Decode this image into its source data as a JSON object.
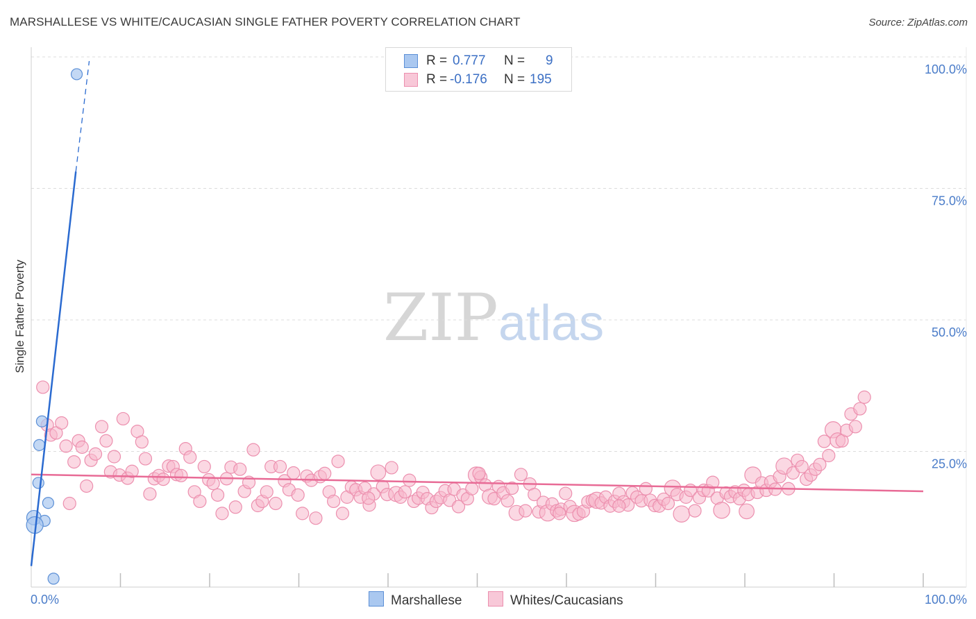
{
  "header": {
    "title": "MARSHALLESE VS WHITE/CAUCASIAN SINGLE FATHER POVERTY CORRELATION CHART",
    "source": "Source: ZipAtlas.com"
  },
  "colors": {
    "blue_fill": "#aac8f0",
    "blue_stroke": "#5b8fd6",
    "blue_line": "#2a6ad0",
    "pink_fill": "#f8b8cc",
    "pink_stroke": "#ec8fae",
    "pink_line": "#e86b96",
    "tick_text": "#4a7cc9",
    "grid": "#dcdcdc"
  },
  "watermark": {
    "zip": "ZIP",
    "atlas": "atlas"
  },
  "legend": {
    "rows": [
      {
        "r_label": "R =",
        "r_value": "0.777",
        "n_label": "N =",
        "n_value": "9"
      },
      {
        "r_label": "R =",
        "r_value": "-0.176",
        "n_label": "N =",
        "n_value": "195"
      }
    ]
  },
  "bottom_legend": {
    "marshallese": "Marshallese",
    "whites": "Whites/Caucasians"
  },
  "chart_data": {
    "type": "scatter",
    "title": "MARSHALLESE VS WHITE/CAUCASIAN SINGLE FATHER POVERTY CORRELATION CHART",
    "xlabel": "",
    "ylabel": "Single Father Poverty",
    "xlim": [
      0,
      100
    ],
    "ylim": [
      0,
      100
    ],
    "x_tick_labels": {
      "left": "0.0%",
      "right": "100.0%"
    },
    "y_ticks": [
      {
        "value": 25,
        "label": "25.0%"
      },
      {
        "value": 50,
        "label": "50.0%"
      },
      {
        "value": 75,
        "label": "75.0%"
      },
      {
        "value": 100,
        "label": "100.0%"
      }
    ],
    "series": [
      {
        "name": "Marshallese",
        "r": 0.777,
        "n": 9,
        "trend": {
          "x0": 0,
          "y0": 4,
          "x1": 5,
          "y1": 79,
          "dash_to_x": 6.5,
          "dash_to_y": 100
        },
        "points": [
          {
            "x": 5.1,
            "y": 97.5,
            "s": 1
          },
          {
            "x": 1.2,
            "y": 31.5,
            "s": 1
          },
          {
            "x": 0.9,
            "y": 27.0,
            "s": 1
          },
          {
            "x": 0.8,
            "y": 19.8,
            "s": 1
          },
          {
            "x": 1.9,
            "y": 16.0,
            "s": 1
          },
          {
            "x": 0.3,
            "y": 13.2,
            "s": 1.3
          },
          {
            "x": 1.5,
            "y": 12.6,
            "s": 1
          },
          {
            "x": 0.4,
            "y": 11.8,
            "s": 1.5
          },
          {
            "x": 2.5,
            "y": 1.6,
            "s": 1
          }
        ]
      },
      {
        "name": "Whites/Caucasians",
        "r": -0.176,
        "n": 195,
        "trend": {
          "x0": 0,
          "y0": 21.4,
          "x1": 100,
          "y1": 18.2
        },
        "points": [
          {
            "x": 1.3,
            "y": 38.0,
            "s": 1
          },
          {
            "x": 1.8,
            "y": 30.8,
            "s": 1
          },
          {
            "x": 2.2,
            "y": 28.9,
            "s": 1
          },
          {
            "x": 2.8,
            "y": 29.3,
            "s": 1
          },
          {
            "x": 3.4,
            "y": 31.2,
            "s": 1
          },
          {
            "x": 3.9,
            "y": 26.8,
            "s": 1
          },
          {
            "x": 4.3,
            "y": 15.9,
            "s": 1
          },
          {
            "x": 4.8,
            "y": 23.8,
            "s": 1
          },
          {
            "x": 5.3,
            "y": 27.8,
            "s": 1
          },
          {
            "x": 5.7,
            "y": 26.6,
            "s": 1
          },
          {
            "x": 6.2,
            "y": 19.2,
            "s": 1
          },
          {
            "x": 6.7,
            "y": 24.1,
            "s": 1
          },
          {
            "x": 7.2,
            "y": 25.3,
            "s": 1
          },
          {
            "x": 7.9,
            "y": 30.5,
            "s": 1
          },
          {
            "x": 8.4,
            "y": 27.8,
            "s": 1
          },
          {
            "x": 8.9,
            "y": 21.9,
            "s": 1
          },
          {
            "x": 9.3,
            "y": 24.8,
            "s": 1
          },
          {
            "x": 9.9,
            "y": 21.3,
            "s": 1
          },
          {
            "x": 10.3,
            "y": 32.0,
            "s": 1
          },
          {
            "x": 10.8,
            "y": 20.7,
            "s": 1
          },
          {
            "x": 11.3,
            "y": 22.0,
            "s": 1
          },
          {
            "x": 11.9,
            "y": 29.6,
            "s": 1
          },
          {
            "x": 12.4,
            "y": 27.6,
            "s": 1
          },
          {
            "x": 12.8,
            "y": 24.4,
            "s": 1
          },
          {
            "x": 13.3,
            "y": 17.7,
            "s": 1
          },
          {
            "x": 13.8,
            "y": 20.6,
            "s": 1
          },
          {
            "x": 14.3,
            "y": 21.2,
            "s": 1
          },
          {
            "x": 14.8,
            "y": 20.5,
            "s": 1
          },
          {
            "x": 15.4,
            "y": 23.0,
            "s": 1
          },
          {
            "x": 15.9,
            "y": 22.9,
            "s": 1
          },
          {
            "x": 16.3,
            "y": 21.4,
            "s": 1
          },
          {
            "x": 16.8,
            "y": 21.2,
            "s": 1
          },
          {
            "x": 17.3,
            "y": 26.3,
            "s": 1
          },
          {
            "x": 17.8,
            "y": 24.7,
            "s": 1
          },
          {
            "x": 18.3,
            "y": 18.1,
            "s": 1
          },
          {
            "x": 18.9,
            "y": 16.3,
            "s": 1
          },
          {
            "x": 19.4,
            "y": 22.9,
            "s": 1
          },
          {
            "x": 19.9,
            "y": 20.4,
            "s": 1
          },
          {
            "x": 20.4,
            "y": 19.7,
            "s": 1
          },
          {
            "x": 20.9,
            "y": 17.5,
            "s": 1
          },
          {
            "x": 21.4,
            "y": 14.0,
            "s": 1
          },
          {
            "x": 21.9,
            "y": 20.6,
            "s": 1
          },
          {
            "x": 22.4,
            "y": 22.8,
            "s": 1
          },
          {
            "x": 22.9,
            "y": 15.2,
            "s": 1
          },
          {
            "x": 23.4,
            "y": 22.4,
            "s": 1
          },
          {
            "x": 23.9,
            "y": 18.2,
            "s": 1
          },
          {
            "x": 24.4,
            "y": 19.9,
            "s": 1
          },
          {
            "x": 24.9,
            "y": 26.1,
            "s": 1
          },
          {
            "x": 25.4,
            "y": 15.5,
            "s": 1
          },
          {
            "x": 25.9,
            "y": 16.3,
            "s": 1
          },
          {
            "x": 26.4,
            "y": 18.1,
            "s": 1
          },
          {
            "x": 26.9,
            "y": 22.9,
            "s": 1
          },
          {
            "x": 27.4,
            "y": 15.9,
            "s": 1
          },
          {
            "x": 27.9,
            "y": 22.9,
            "s": 1
          },
          {
            "x": 28.4,
            "y": 20.2,
            "s": 1
          },
          {
            "x": 28.9,
            "y": 18.5,
            "s": 1
          },
          {
            "x": 29.4,
            "y": 21.7,
            "s": 1
          },
          {
            "x": 29.9,
            "y": 17.5,
            "s": 1
          },
          {
            "x": 30.4,
            "y": 14.0,
            "s": 1
          },
          {
            "x": 30.9,
            "y": 21.1,
            "s": 1
          },
          {
            "x": 31.4,
            "y": 20.3,
            "s": 1
          },
          {
            "x": 31.9,
            "y": 13.1,
            "s": 1
          },
          {
            "x": 32.4,
            "y": 21.0,
            "s": 1
          },
          {
            "x": 32.9,
            "y": 21.6,
            "s": 1
          },
          {
            "x": 33.4,
            "y": 18.1,
            "s": 1
          },
          {
            "x": 33.9,
            "y": 16.3,
            "s": 1
          },
          {
            "x": 34.4,
            "y": 23.9,
            "s": 1
          },
          {
            "x": 34.9,
            "y": 14.0,
            "s": 1
          },
          {
            "x": 35.4,
            "y": 17.1,
            "s": 1
          },
          {
            "x": 35.9,
            "y": 19.0,
            "s": 1
          },
          {
            "x": 36.4,
            "y": 18.5,
            "s": 1
          },
          {
            "x": 36.9,
            "y": 17.1,
            "s": 1
          },
          {
            "x": 37.4,
            "y": 18.8,
            "s": 1
          },
          {
            "x": 37.9,
            "y": 15.6,
            "s": 1
          },
          {
            "x": 38.4,
            "y": 17.7,
            "s": 1
          },
          {
            "x": 38.9,
            "y": 21.8,
            "s": 1.2
          },
          {
            "x": 39.4,
            "y": 19.1,
            "s": 1
          },
          {
            "x": 39.9,
            "y": 17.6,
            "s": 1
          },
          {
            "x": 40.4,
            "y": 22.7,
            "s": 1
          },
          {
            "x": 40.9,
            "y": 17.7,
            "s": 1.2
          },
          {
            "x": 41.4,
            "y": 17.1,
            "s": 1
          },
          {
            "x": 41.9,
            "y": 18.1,
            "s": 1
          },
          {
            "x": 42.4,
            "y": 20.3,
            "s": 1
          },
          {
            "x": 42.9,
            "y": 16.3,
            "s": 1
          },
          {
            "x": 43.4,
            "y": 16.9,
            "s": 1
          },
          {
            "x": 43.9,
            "y": 18.0,
            "s": 1
          },
          {
            "x": 44.4,
            "y": 16.8,
            "s": 1
          },
          {
            "x": 44.9,
            "y": 15.1,
            "s": 1
          },
          {
            "x": 45.4,
            "y": 16.3,
            "s": 1
          },
          {
            "x": 45.9,
            "y": 17.0,
            "s": 1
          },
          {
            "x": 46.4,
            "y": 18.3,
            "s": 1
          },
          {
            "x": 46.9,
            "y": 16.5,
            "s": 1
          },
          {
            "x": 47.4,
            "y": 18.6,
            "s": 1
          },
          {
            "x": 47.9,
            "y": 15.3,
            "s": 1
          },
          {
            "x": 48.4,
            "y": 17.5,
            "s": 1
          },
          {
            "x": 48.9,
            "y": 16.8,
            "s": 1
          },
          {
            "x": 49.4,
            "y": 18.7,
            "s": 1
          },
          {
            "x": 49.9,
            "y": 21.3,
            "s": 1.3
          },
          {
            "x": 50.4,
            "y": 20.9,
            "s": 1
          },
          {
            "x": 50.9,
            "y": 19.4,
            "s": 1
          },
          {
            "x": 51.4,
            "y": 17.2,
            "s": 1.2
          },
          {
            "x": 51.9,
            "y": 16.8,
            "s": 1
          },
          {
            "x": 52.4,
            "y": 19.1,
            "s": 1
          },
          {
            "x": 52.9,
            "y": 17.9,
            "s": 1
          },
          {
            "x": 53.4,
            "y": 16.4,
            "s": 1
          },
          {
            "x": 53.9,
            "y": 18.8,
            "s": 1
          },
          {
            "x": 54.4,
            "y": 14.1,
            "s": 1.2
          },
          {
            "x": 54.9,
            "y": 21.4,
            "s": 1
          },
          {
            "x": 55.4,
            "y": 14.5,
            "s": 1
          },
          {
            "x": 55.9,
            "y": 19.6,
            "s": 1
          },
          {
            "x": 56.4,
            "y": 17.6,
            "s": 1
          },
          {
            "x": 56.9,
            "y": 14.3,
            "s": 1
          },
          {
            "x": 57.4,
            "y": 16.1,
            "s": 1
          },
          {
            "x": 57.9,
            "y": 14.1,
            "s": 1.3
          },
          {
            "x": 58.4,
            "y": 15.8,
            "s": 1
          },
          {
            "x": 58.9,
            "y": 14.5,
            "s": 1
          },
          {
            "x": 59.4,
            "y": 14.8,
            "s": 1
          },
          {
            "x": 59.9,
            "y": 17.8,
            "s": 1
          },
          {
            "x": 60.4,
            "y": 15.3,
            "s": 1
          },
          {
            "x": 60.9,
            "y": 14.0,
            "s": 1.3
          },
          {
            "x": 61.4,
            "y": 13.9,
            "s": 1
          },
          {
            "x": 61.9,
            "y": 14.4,
            "s": 1
          },
          {
            "x": 62.4,
            "y": 16.2,
            "s": 1
          },
          {
            "x": 62.9,
            "y": 16.5,
            "s": 1
          },
          {
            "x": 63.4,
            "y": 16.5,
            "s": 1.3
          },
          {
            "x": 63.9,
            "y": 16.0,
            "s": 1
          },
          {
            "x": 64.4,
            "y": 17.1,
            "s": 1
          },
          {
            "x": 64.9,
            "y": 15.4,
            "s": 1
          },
          {
            "x": 65.4,
            "y": 16.3,
            "s": 1
          },
          {
            "x": 65.9,
            "y": 17.8,
            "s": 1
          },
          {
            "x": 66.4,
            "y": 16.2,
            "s": 1
          },
          {
            "x": 66.9,
            "y": 15.6,
            "s": 1
          },
          {
            "x": 67.4,
            "y": 17.9,
            "s": 1
          },
          {
            "x": 67.9,
            "y": 17.1,
            "s": 1
          },
          {
            "x": 68.4,
            "y": 16.4,
            "s": 1
          },
          {
            "x": 68.9,
            "y": 18.7,
            "s": 1
          },
          {
            "x": 69.4,
            "y": 16.5,
            "s": 1
          },
          {
            "x": 69.9,
            "y": 15.5,
            "s": 1
          },
          {
            "x": 70.4,
            "y": 15.4,
            "s": 1
          },
          {
            "x": 70.9,
            "y": 16.7,
            "s": 1
          },
          {
            "x": 71.4,
            "y": 15.9,
            "s": 1
          },
          {
            "x": 71.9,
            "y": 18.8,
            "s": 1.3
          },
          {
            "x": 72.4,
            "y": 17.6,
            "s": 1
          },
          {
            "x": 72.9,
            "y": 13.9,
            "s": 1.3
          },
          {
            "x": 73.4,
            "y": 17.1,
            "s": 1
          },
          {
            "x": 73.9,
            "y": 18.4,
            "s": 1
          },
          {
            "x": 74.4,
            "y": 14.5,
            "s": 1
          },
          {
            "x": 74.9,
            "y": 17.0,
            "s": 1
          },
          {
            "x": 75.4,
            "y": 18.4,
            "s": 1
          },
          {
            "x": 75.9,
            "y": 18.3,
            "s": 1
          },
          {
            "x": 76.4,
            "y": 19.9,
            "s": 1
          },
          {
            "x": 76.9,
            "y": 16.9,
            "s": 1
          },
          {
            "x": 77.4,
            "y": 14.6,
            "s": 1.3
          },
          {
            "x": 77.9,
            "y": 17.9,
            "s": 1
          },
          {
            "x": 78.4,
            "y": 17.2,
            "s": 1
          },
          {
            "x": 78.9,
            "y": 18.1,
            "s": 1
          },
          {
            "x": 79.4,
            "y": 16.8,
            "s": 1
          },
          {
            "x": 79.9,
            "y": 18.4,
            "s": 1
          },
          {
            "x": 80.4,
            "y": 17.6,
            "s": 1
          },
          {
            "x": 80.9,
            "y": 21.3,
            "s": 1.3
          },
          {
            "x": 81.4,
            "y": 18.0,
            "s": 1
          },
          {
            "x": 81.9,
            "y": 19.8,
            "s": 1
          },
          {
            "x": 82.4,
            "y": 18.4,
            "s": 1
          },
          {
            "x": 82.9,
            "y": 20.0,
            "s": 1
          },
          {
            "x": 83.4,
            "y": 18.6,
            "s": 1
          },
          {
            "x": 83.9,
            "y": 21.0,
            "s": 1
          },
          {
            "x": 84.4,
            "y": 23.0,
            "s": 1.3
          },
          {
            "x": 84.9,
            "y": 18.7,
            "s": 1
          },
          {
            "x": 85.4,
            "y": 21.7,
            "s": 1
          },
          {
            "x": 85.9,
            "y": 24.1,
            "s": 1
          },
          {
            "x": 86.4,
            "y": 22.9,
            "s": 1
          },
          {
            "x": 86.9,
            "y": 20.5,
            "s": 1
          },
          {
            "x": 87.4,
            "y": 21.3,
            "s": 1
          },
          {
            "x": 87.9,
            "y": 22.4,
            "s": 1
          },
          {
            "x": 88.4,
            "y": 23.3,
            "s": 1
          },
          {
            "x": 88.9,
            "y": 27.7,
            "s": 1
          },
          {
            "x": 89.4,
            "y": 25.0,
            "s": 1
          },
          {
            "x": 89.9,
            "y": 29.9,
            "s": 1.3
          },
          {
            "x": 90.4,
            "y": 27.9,
            "s": 1.2
          },
          {
            "x": 90.9,
            "y": 27.8,
            "s": 1
          },
          {
            "x": 91.4,
            "y": 29.8,
            "s": 1
          },
          {
            "x": 91.9,
            "y": 32.9,
            "s": 1
          },
          {
            "x": 92.4,
            "y": 30.5,
            "s": 1
          },
          {
            "x": 92.9,
            "y": 33.9,
            "s": 1
          },
          {
            "x": 93.4,
            "y": 36.1,
            "s": 1
          },
          {
            "x": 50.2,
            "y": 21.6,
            "s": 1
          },
          {
            "x": 65.9,
            "y": 15.4,
            "s": 1
          },
          {
            "x": 37.8,
            "y": 16.9,
            "s": 1
          },
          {
            "x": 59.2,
            "y": 14.0,
            "s": 1
          },
          {
            "x": 80.2,
            "y": 14.4,
            "s": 1.2
          }
        ]
      }
    ]
  }
}
